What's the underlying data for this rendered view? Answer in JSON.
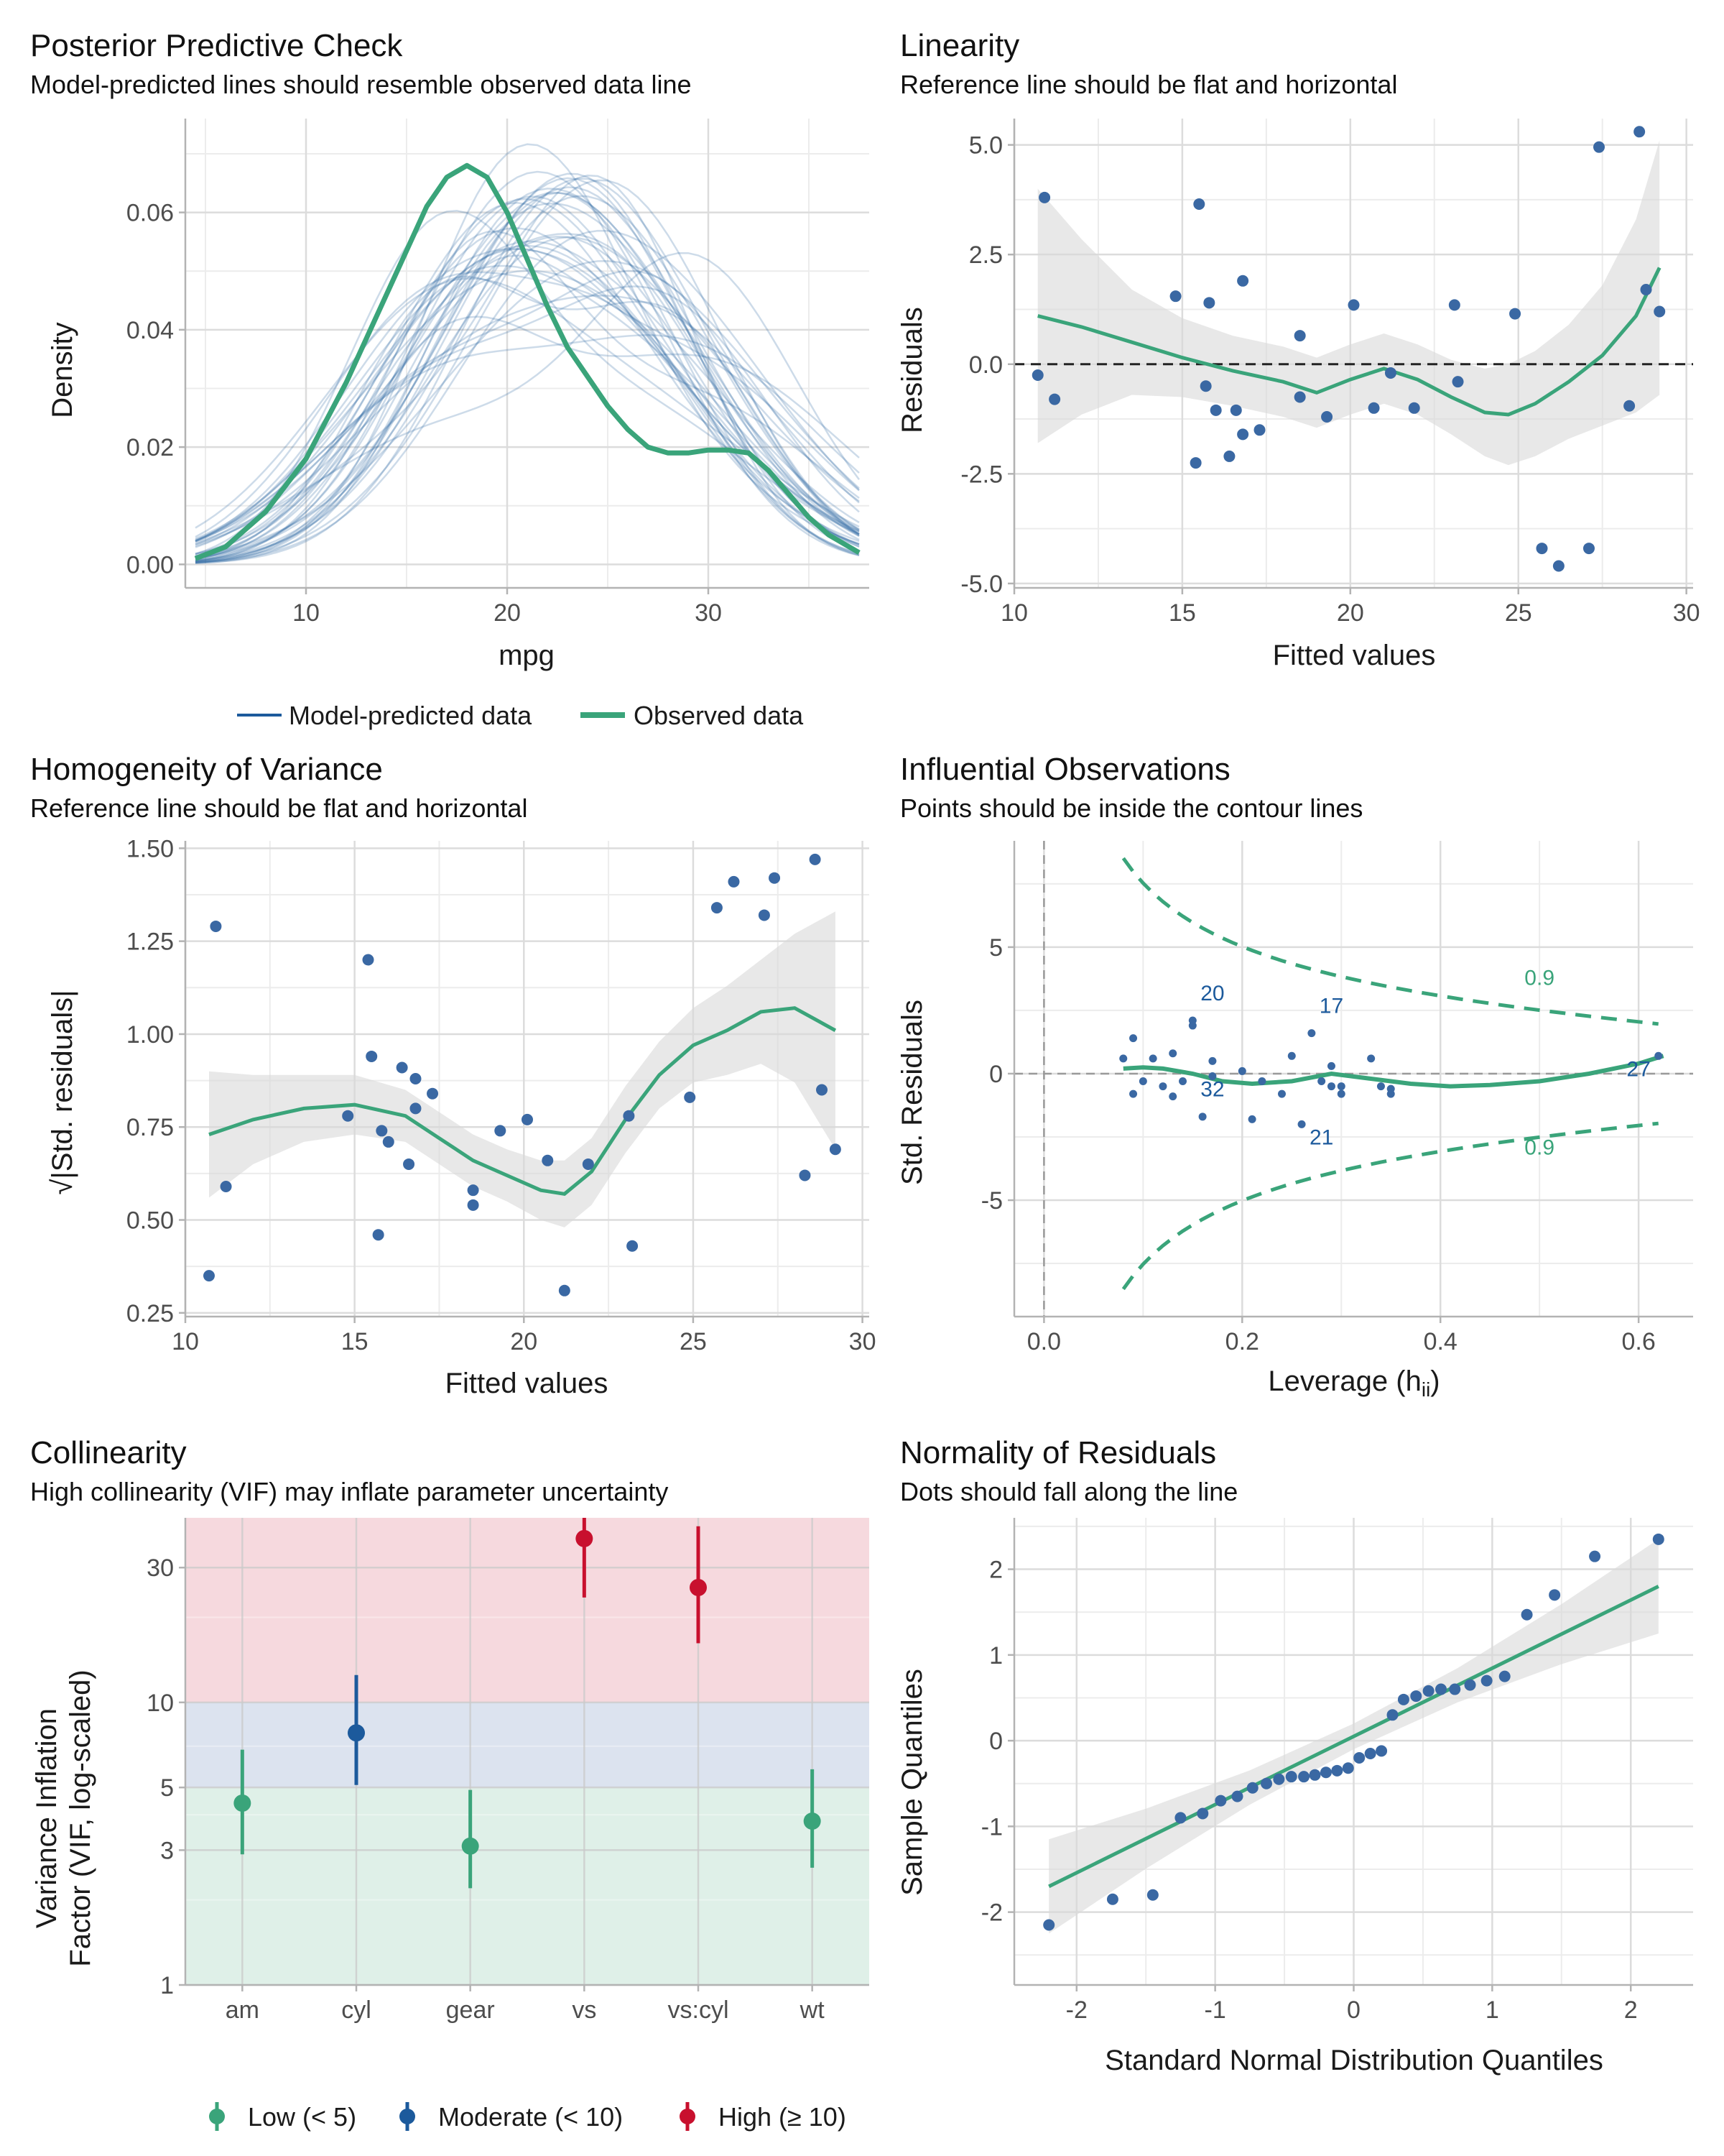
{
  "colors": {
    "blue_points": "#3a68a3",
    "green_fit": "#3aa47a",
    "model_line": "#1c5a9c",
    "band": "#d9d9d9",
    "zone_low": "#dff0e8",
    "zone_moderate": "#dce3ef",
    "zone_high": "#f6d9de",
    "low": "#3aa47a",
    "moderate": "#1c5a9c",
    "high": "#c8102e",
    "label_blue": "#1c5a9c"
  },
  "chart_data": [
    {
      "id": "ppc",
      "type": "line",
      "title": "Posterior Predictive Check",
      "subtitle": "Model-predicted lines should resemble observed data line",
      "xlabel": "mpg",
      "ylabel": "Density",
      "xlim": [
        4,
        38
      ],
      "ylim": [
        -0.004,
        0.076
      ],
      "xticks": [
        10,
        20,
        30
      ],
      "yticks": [
        0.0,
        0.02,
        0.04,
        0.06
      ],
      "ytick_labels": [
        "0.00",
        "0.02",
        "0.04",
        "0.06"
      ],
      "grid": true,
      "legend": {
        "placement": "bottom",
        "entries": [
          "Model-predicted data",
          "Observed data"
        ]
      },
      "observed": {
        "x": [
          4.5,
          6,
          8,
          10,
          12,
          14,
          16,
          17,
          18,
          19,
          20,
          21,
          22,
          23,
          24,
          25,
          26,
          27,
          28,
          29,
          30,
          31,
          32,
          33,
          34,
          35,
          36,
          37.5
        ],
        "y": [
          0.001,
          0.003,
          0.009,
          0.018,
          0.031,
          0.046,
          0.061,
          0.066,
          0.068,
          0.066,
          0.06,
          0.052,
          0.044,
          0.037,
          0.032,
          0.027,
          0.023,
          0.02,
          0.019,
          0.019,
          0.0195,
          0.0195,
          0.019,
          0.016,
          0.012,
          0.008,
          0.005,
          0.002
        ]
      },
      "model_predicted_note": "many semi-transparent simulated density curves"
    },
    {
      "id": "linearity",
      "type": "scatter",
      "title": "Linearity",
      "subtitle": "Reference line should be flat and horizontal",
      "xlabel": "Fitted values",
      "ylabel": "Residuals",
      "xlim": [
        10,
        30.2
      ],
      "ylim": [
        -5.1,
        5.6
      ],
      "xticks": [
        10,
        15,
        20,
        25,
        30
      ],
      "yticks": [
        -5,
        -2.5,
        0,
        2.5,
        5
      ],
      "ytick_labels": [
        "-5.0",
        "-2.5",
        "0.0",
        "2.5",
        "5.0"
      ],
      "reference_y": 0,
      "points": [
        [
          10.7,
          -0.25
        ],
        [
          10.9,
          3.8
        ],
        [
          11.2,
          -0.8
        ],
        [
          14.8,
          1.55
        ],
        [
          15.4,
          -2.25
        ],
        [
          15.5,
          3.65
        ],
        [
          15.7,
          -0.5
        ],
        [
          15.8,
          1.4
        ],
        [
          16.0,
          -1.05
        ],
        [
          16.4,
          -2.1
        ],
        [
          16.6,
          -1.05
        ],
        [
          16.8,
          1.9
        ],
        [
          16.8,
          -1.6
        ],
        [
          17.3,
          -1.5
        ],
        [
          18.5,
          0.65
        ],
        [
          18.5,
          -0.75
        ],
        [
          19.3,
          -1.2
        ],
        [
          20.1,
          1.35
        ],
        [
          20.7,
          -1.0
        ],
        [
          21.2,
          -0.2
        ],
        [
          21.9,
          -1.0
        ],
        [
          23.1,
          1.35
        ],
        [
          23.2,
          -0.4
        ],
        [
          24.9,
          1.15
        ],
        [
          25.7,
          -4.2
        ],
        [
          26.2,
          -4.6
        ],
        [
          27.1,
          -4.2
        ],
        [
          27.4,
          4.95
        ],
        [
          28.3,
          -0.95
        ],
        [
          28.6,
          5.3
        ],
        [
          28.8,
          1.7
        ],
        [
          29.2,
          1.2
        ]
      ],
      "smooth": {
        "x": [
          10.7,
          12,
          13.5,
          15,
          16.5,
          18,
          19,
          20,
          21,
          22,
          23,
          24,
          24.7,
          25.5,
          26.5,
          27.5,
          28.5,
          29.2
        ],
        "y": [
          1.1,
          0.85,
          0.5,
          0.15,
          -0.15,
          -0.4,
          -0.65,
          -0.35,
          -0.1,
          -0.35,
          -0.75,
          -1.1,
          -1.15,
          -0.9,
          -0.4,
          0.2,
          1.1,
          2.2
        ],
        "band_half_width": [
          2.9,
          2.0,
          1.2,
          0.9,
          0.8,
          0.8,
          0.8,
          0.8,
          0.8,
          0.8,
          0.85,
          1.0,
          1.15,
          1.2,
          1.3,
          1.6,
          2.2,
          2.9
        ]
      }
    },
    {
      "id": "homogeneity",
      "type": "scatter",
      "title": "Homogeneity of Variance",
      "subtitle": "Reference line should be flat and horizontal",
      "xlabel": "Fitted values",
      "ylabel": "√|Std. residuals|",
      "xlim": [
        10,
        30.2
      ],
      "ylim": [
        0.24,
        1.52
      ],
      "xticks": [
        10,
        15,
        20,
        25,
        30
      ],
      "yticks": [
        0.25,
        0.5,
        0.75,
        1.0,
        1.25,
        1.5
      ],
      "ytick_labels": [
        "0.25",
        "0.50",
        "0.75",
        "1.00",
        "1.25",
        "1.50"
      ],
      "points": [
        [
          10.7,
          0.35
        ],
        [
          10.9,
          1.29
        ],
        [
          11.2,
          0.59
        ],
        [
          14.8,
          0.78
        ],
        [
          15.4,
          1.2
        ],
        [
          15.5,
          0.94
        ],
        [
          15.7,
          0.46
        ],
        [
          15.8,
          0.74
        ],
        [
          16.0,
          0.71
        ],
        [
          16.4,
          0.91
        ],
        [
          16.6,
          0.65
        ],
        [
          16.8,
          0.88
        ],
        [
          16.8,
          0.8
        ],
        [
          17.3,
          0.84
        ],
        [
          18.5,
          0.58
        ],
        [
          18.5,
          0.54
        ],
        [
          19.3,
          0.74
        ],
        [
          20.1,
          0.77
        ],
        [
          20.7,
          0.66
        ],
        [
          21.2,
          0.31
        ],
        [
          21.9,
          0.65
        ],
        [
          23.1,
          0.78
        ],
        [
          23.2,
          0.43
        ],
        [
          24.9,
          0.83
        ],
        [
          25.7,
          1.34
        ],
        [
          26.2,
          1.41
        ],
        [
          27.1,
          1.32
        ],
        [
          27.4,
          1.42
        ],
        [
          28.3,
          0.62
        ],
        [
          28.6,
          1.47
        ],
        [
          28.8,
          0.85
        ],
        [
          29.2,
          0.69
        ]
      ],
      "smooth": {
        "x": [
          10.7,
          12,
          13.5,
          15,
          16.5,
          17.5,
          18.5,
          19.5,
          20.5,
          21.2,
          22,
          23,
          24,
          25,
          26,
          27,
          28,
          29.2
        ],
        "y": [
          0.73,
          0.77,
          0.8,
          0.81,
          0.78,
          0.72,
          0.66,
          0.62,
          0.58,
          0.57,
          0.63,
          0.77,
          0.89,
          0.97,
          1.01,
          1.06,
          1.07,
          1.01
        ],
        "band_half_width": [
          0.17,
          0.12,
          0.09,
          0.08,
          0.07,
          0.07,
          0.07,
          0.07,
          0.08,
          0.09,
          0.09,
          0.09,
          0.09,
          0.1,
          0.12,
          0.14,
          0.2,
          0.32
        ]
      }
    },
    {
      "id": "influential",
      "type": "scatter",
      "title": "Influential Observations",
      "subtitle": "Points should be inside the contour lines",
      "xlabel": "Leverage (h",
      "xlabel_sub": "ii",
      "xlabel_end": ")",
      "ylabel": "Std. Residuals",
      "xlim": [
        -0.03,
        0.655
      ],
      "ylim": [
        -9.6,
        9.2
      ],
      "xticks": [
        0.0,
        0.2,
        0.4,
        0.6
      ],
      "xtick_labels": [
        "0.0",
        "0.2",
        "0.4",
        "0.6"
      ],
      "yticks": [
        -5,
        0,
        5
      ],
      "points": [
        [
          0.08,
          0.6
        ],
        [
          0.09,
          1.4
        ],
        [
          0.09,
          -0.8
        ],
        [
          0.1,
          -0.3
        ],
        [
          0.11,
          0.6
        ],
        [
          0.12,
          -0.5
        ],
        [
          0.13,
          -0.9
        ],
        [
          0.13,
          0.8
        ],
        [
          0.14,
          -0.3
        ],
        [
          0.15,
          1.9
        ],
        [
          0.15,
          2.1
        ],
        [
          0.16,
          -1.7
        ],
        [
          0.17,
          0.5
        ],
        [
          0.17,
          -0.1
        ],
        [
          0.2,
          0.1
        ],
        [
          0.21,
          -1.8
        ],
        [
          0.22,
          -0.3
        ],
        [
          0.24,
          -0.8
        ],
        [
          0.25,
          0.7
        ],
        [
          0.26,
          -2.0
        ],
        [
          0.27,
          1.6
        ],
        [
          0.28,
          -0.3
        ],
        [
          0.29,
          -0.5
        ],
        [
          0.29,
          0.3
        ],
        [
          0.3,
          -0.5
        ],
        [
          0.3,
          -0.8
        ],
        [
          0.33,
          0.6
        ],
        [
          0.34,
          -0.5
        ],
        [
          0.35,
          -0.8
        ],
        [
          0.35,
          -0.6
        ],
        [
          0.62,
          0.7
        ]
      ],
      "point_labels": [
        {
          "text": "20",
          "x": 0.17,
          "y": 2.9
        },
        {
          "text": "17",
          "x": 0.29,
          "y": 2.4
        },
        {
          "text": "32",
          "x": 0.17,
          "y": -0.9
        },
        {
          "text": "21",
          "x": 0.28,
          "y": -2.8
        },
        {
          "text": "27",
          "x": 0.6,
          "y": -0.1
        }
      ],
      "contour_label": "0.9",
      "contour_label_positions": [
        {
          "x": 0.5,
          "y": 3.5
        },
        {
          "x": 0.5,
          "y": -3.2
        }
      ],
      "fit": {
        "x": [
          0.08,
          0.1,
          0.12,
          0.15,
          0.18,
          0.21,
          0.25,
          0.29,
          0.33,
          0.37,
          0.41,
          0.45,
          0.5,
          0.55,
          0.6,
          0.625
        ],
        "y": [
          0.2,
          0.25,
          0.2,
          0.0,
          -0.3,
          -0.4,
          -0.3,
          0.0,
          -0.2,
          -0.4,
          -0.5,
          -0.45,
          -0.3,
          0.0,
          0.4,
          0.7
        ]
      }
    },
    {
      "id": "collinearity",
      "type": "scatter",
      "title": "Collinearity",
      "subtitle": "High collinearity (VIF) may inflate parameter uncertainty",
      "xlabel": "",
      "ylabel_lines": [
        "Variance Inflation",
        "Factor (VIF, log-scaled)"
      ],
      "scale_y": "log",
      "ylim": [
        1,
        45
      ],
      "yticks": [
        1,
        3,
        5,
        10,
        30
      ],
      "categories": [
        "am",
        "cyl",
        "gear",
        "vs",
        "vs:cyl",
        "wt"
      ],
      "vif": [
        4.4,
        7.8,
        3.1,
        38,
        25.5,
        3.8
      ],
      "ci_low": [
        2.9,
        5.1,
        2.2,
        23.5,
        16.2,
        2.6
      ],
      "ci_high": [
        6.8,
        12.5,
        4.9,
        45,
        42,
        5.8
      ],
      "level": [
        "low",
        "moderate",
        "low",
        "high",
        "high",
        "low"
      ],
      "zones": [
        {
          "from": 1,
          "to": 5,
          "level": "low"
        },
        {
          "from": 5,
          "to": 10,
          "level": "moderate"
        },
        {
          "from": 10,
          "to": 45,
          "level": "high"
        }
      ],
      "legend": {
        "placement": "bottom",
        "entries": [
          "Low (< 5)",
          "Moderate (< 10)",
          "High (≥ 10)"
        ]
      }
    },
    {
      "id": "normality",
      "type": "scatter",
      "title": "Normality of Residuals",
      "subtitle": "Dots should fall along the line",
      "xlabel": "Standard Normal Distribution Quantiles",
      "ylabel": "Sample Quantiles",
      "xlim": [
        -2.45,
        2.45
      ],
      "ylim": [
        -2.85,
        2.6
      ],
      "xticks": [
        -2,
        -1,
        0,
        1,
        2
      ],
      "yticks": [
        -2,
        -1,
        0,
        1,
        2
      ],
      "points": [
        [
          -2.2,
          -2.15
        ],
        [
          -1.74,
          -1.85
        ],
        [
          -1.45,
          -1.8
        ],
        [
          -1.25,
          -0.9
        ],
        [
          -1.09,
          -0.85
        ],
        [
          -0.96,
          -0.7
        ],
        [
          -0.84,
          -0.65
        ],
        [
          -0.73,
          -0.55
        ],
        [
          -0.63,
          -0.5
        ],
        [
          -0.54,
          -0.45
        ],
        [
          -0.45,
          -0.42
        ],
        [
          -0.36,
          -0.42
        ],
        [
          -0.28,
          -0.4
        ],
        [
          -0.2,
          -0.37
        ],
        [
          -0.12,
          -0.35
        ],
        [
          -0.04,
          -0.32
        ],
        [
          0.04,
          -0.2
        ],
        [
          0.12,
          -0.15
        ],
        [
          0.2,
          -0.12
        ],
        [
          0.28,
          0.3
        ],
        [
          0.36,
          0.48
        ],
        [
          0.45,
          0.52
        ],
        [
          0.54,
          0.58
        ],
        [
          0.63,
          0.6
        ],
        [
          0.73,
          0.6
        ],
        [
          0.84,
          0.65
        ],
        [
          0.96,
          0.7
        ],
        [
          1.09,
          0.75
        ],
        [
          1.25,
          1.47
        ],
        [
          1.45,
          1.7
        ],
        [
          1.74,
          2.15
        ],
        [
          2.2,
          2.35
        ]
      ],
      "reference_line": {
        "x": [
          -2.2,
          2.2
        ],
        "y": [
          -1.7,
          1.8
        ]
      },
      "band_half_width": {
        "x": [
          -2.2,
          -1.5,
          -0.75,
          0,
          0.75,
          1.5,
          2.2
        ],
        "w": [
          0.55,
          0.35,
          0.2,
          0.15,
          0.2,
          0.35,
          0.55
        ]
      }
    }
  ]
}
